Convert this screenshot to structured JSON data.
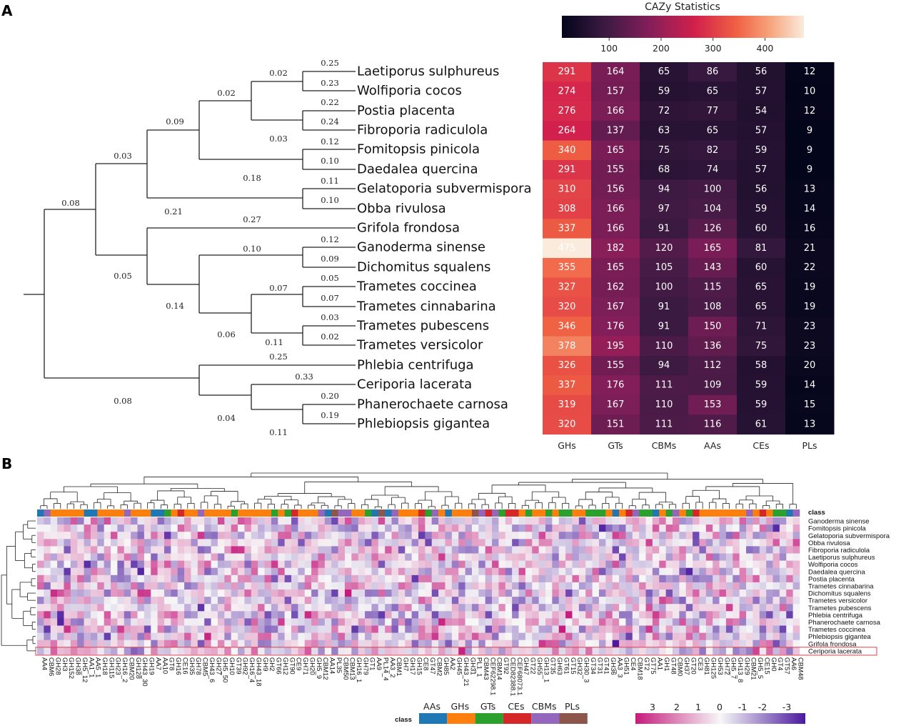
{
  "panel_labels": {
    "a": "A",
    "b": "B"
  },
  "chart_data": [
    {
      "type": "heatmap",
      "title": "CAZy Statistics",
      "colorbar_ticks": [
        100,
        200,
        300,
        400
      ],
      "colormap": "rocket (dark purple to red to cream)",
      "categories": [
        "GHs",
        "GTs",
        "CBMs",
        "AAs",
        "CEs",
        "PLs"
      ],
      "rows": [
        "Laetiporus sulphureus",
        "Wolfiporia cocos",
        "Postia placenta",
        "Fibroporia radiculola",
        "Fomitopsis pinicola",
        "Daedalea quercina",
        "Gelatoporia subvermispora",
        "Obba rivulosa",
        "Grifola frondosa",
        "Ganoderma sinense",
        "Dichomitus squalens",
        "Trametes coccinea",
        "Trametes cinnabarina",
        "Trametes pubescens",
        "Trametes versicolor",
        "Phlebia centrifuga",
        "Ceriporia lacerata",
        "Phanerochaete carnosa",
        "Phlebiopsis gigantea"
      ],
      "values": [
        [
          291,
          164,
          65,
          86,
          56,
          12
        ],
        [
          274,
          157,
          59,
          65,
          57,
          10
        ],
        [
          276,
          166,
          72,
          77,
          54,
          12
        ],
        [
          264,
          137,
          63,
          65,
          57,
          9
        ],
        [
          340,
          165,
          75,
          82,
          59,
          9
        ],
        [
          291,
          155,
          68,
          74,
          57,
          9
        ],
        [
          310,
          156,
          94,
          100,
          56,
          13
        ],
        [
          308,
          166,
          97,
          104,
          59,
          14
        ],
        [
          337,
          166,
          91,
          126,
          60,
          16
        ],
        [
          475,
          182,
          120,
          165,
          81,
          21
        ],
        [
          355,
          165,
          105,
          143,
          60,
          22
        ],
        [
          327,
          162,
          100,
          115,
          65,
          19
        ],
        [
          320,
          167,
          91,
          108,
          65,
          19
        ],
        [
          346,
          176,
          91,
          150,
          71,
          23
        ],
        [
          378,
          195,
          110,
          136,
          75,
          23
        ],
        [
          326,
          155,
          94,
          112,
          58,
          20
        ],
        [
          337,
          176,
          111,
          109,
          59,
          14
        ],
        [
          319,
          167,
          110,
          153,
          59,
          15
        ],
        [
          320,
          151,
          111,
          116,
          61,
          13
        ]
      ],
      "tree_branch_lengths": [
        "0.25",
        "0.23",
        "0.22",
        "0.24",
        "0.12",
        "0.10",
        "0.11",
        "0.10",
        "0.02",
        "0.03",
        "0.02",
        "0.18",
        "0.09",
        "0.21",
        "0.03",
        "0.08",
        "0.27",
        "0.12",
        "0.09",
        "0.10",
        "0.05",
        "0.07",
        "0.03",
        "0.02",
        "0.07",
        "0.11",
        "0.06",
        "0.14",
        "0.05",
        "0.25",
        "0.33",
        "0.20",
        "0.19",
        "0.04",
        "0.11",
        "0.08"
      ]
    },
    {
      "type": "heatmap",
      "class_label": "class",
      "rows": [
        "Ganoderma sinense",
        "Fomitopsis pinicola",
        "Gelatoporia subvermispora",
        "Obba rivulosa",
        "Fibroporia radiculola",
        "Laetiporus sulphureus",
        "Wolfiporia cocos",
        "Daedalea quercina",
        "Postia placenta",
        "Trametes cinnabarina",
        "Dichomitus squalens",
        "Trametes versicolor",
        "Trametes pubescens",
        "Phlebia centrifuga",
        "Phanerochaete carnosa",
        "Trametes coccinea",
        "Phlebiopsis gigantea",
        "Grifola frondosa",
        "Ceriporia lacerata"
      ],
      "highlighted_row": "Ceriporia lacerata",
      "columns": [
        "AA4",
        "CBM6",
        "GH28",
        "GH3",
        "GH152",
        "GH38",
        "GH5_12",
        "AA1_1",
        "AA5_1",
        "GH18",
        "GH115",
        "GH23",
        "GH16_2",
        "CBM20",
        "GH128",
        "GH43_30",
        "GH19",
        "AA7",
        "AA10",
        "GT8",
        "GH16",
        "CE16",
        "GH35",
        "GH78",
        "CBM5",
        "GH43_6",
        "GH27",
        "GH5_50",
        "GH10",
        "GT39",
        "GH92",
        "GH16_4",
        "GH43_18",
        "GH9",
        "GH2",
        "GT66",
        "GH12",
        "GT90",
        "CE9",
        "GH71",
        "GH20",
        "GH5_9",
        "CBM12",
        "AA14",
        "PL35",
        "CBM50",
        "CBM13",
        "GH16_1",
        "GH79",
        "GT1",
        "AA9",
        "PL14_4",
        "AA3_2",
        "CBM1",
        "GH7",
        "GH17",
        "GH15",
        "CE8",
        "GT47",
        "CBM2",
        "GH85",
        "AA2",
        "GH45",
        "GH43_21",
        "GH31",
        "PL1_1",
        "CBM43",
        "CEF62298.1",
        "CBM14",
        "GT92",
        "CED82388.1",
        "CEF68073.1",
        "GH47",
        "GT22",
        "GH55",
        "GH13_1",
        "GT35",
        "GH63",
        "GT61",
        "GT15",
        "GH32",
        "GH30_3",
        "GT34",
        "GT31",
        "GT41",
        "GH36",
        "AA3_3",
        "GH51",
        "CE4",
        "CBM18",
        "GT2",
        "GT75",
        "AA1",
        "GH1",
        "GT48",
        "CBM0",
        "GH37",
        "GT20",
        "CE3",
        "GH81",
        "GH125",
        "GH53",
        "GH72",
        "GH5_7",
        "GH13_8",
        "GH29",
        "CBM21",
        "GH5_5",
        "CE15",
        "GH0",
        "GT4",
        "GT57",
        "AA6",
        "CBM48"
      ],
      "class_legend": [
        {
          "name": "AAs",
          "color": "#1f77b4"
        },
        {
          "name": "GHs",
          "color": "#ff7f0e"
        },
        {
          "name": "GTs",
          "color": "#2ca02c"
        },
        {
          "name": "CEs",
          "color": "#d62728"
        },
        {
          "name": "CBMs",
          "color": "#9467bd"
        },
        {
          "name": "PLs",
          "color": "#8c564b"
        }
      ],
      "scale_ticks": [
        "3",
        "2",
        "1",
        "0",
        "-1",
        "-2",
        "-3"
      ],
      "scale_colors": {
        "high": "#c51b7d",
        "mid": "#f7f7f7",
        "low": "#4b1a9f"
      }
    }
  ]
}
